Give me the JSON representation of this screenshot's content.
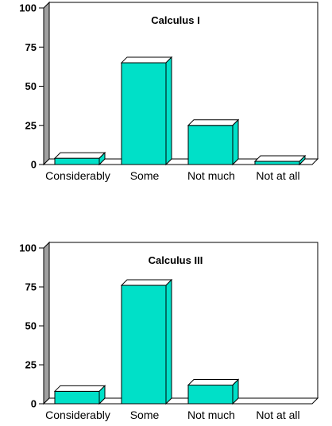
{
  "chart_data": [
    {
      "type": "bar",
      "title": "Calculus I",
      "categories": [
        "Considerably",
        "Some",
        "Not much",
        "Not at all"
      ],
      "values": [
        4,
        65,
        25,
        2
      ],
      "ylim": [
        0,
        100
      ],
      "yticks": [
        0,
        25,
        50,
        75,
        100
      ],
      "ytick_labels": [
        "0",
        "25",
        "50",
        "75",
        "100"
      ],
      "xlabel": "",
      "ylabel": "",
      "grid": false,
      "style": "3d",
      "bar_color": "#00e0c8",
      "back_wall_color": "#ffffff",
      "side_wall_color": "#a0a0a0"
    },
    {
      "type": "bar",
      "title": "Calculus III",
      "categories": [
        "Considerably",
        "Some",
        "Not much",
        "Not at all"
      ],
      "values": [
        8,
        76,
        12,
        0
      ],
      "ylim": [
        0,
        100
      ],
      "yticks": [
        0,
        25,
        50,
        75,
        100
      ],
      "ytick_labels": [
        "0",
        "25",
        "50",
        "75",
        "100"
      ],
      "xlabel": "",
      "ylabel": "",
      "grid": false,
      "style": "3d",
      "bar_color": "#00e0c8",
      "back_wall_color": "#ffffff",
      "side_wall_color": "#a0a0a0"
    }
  ]
}
